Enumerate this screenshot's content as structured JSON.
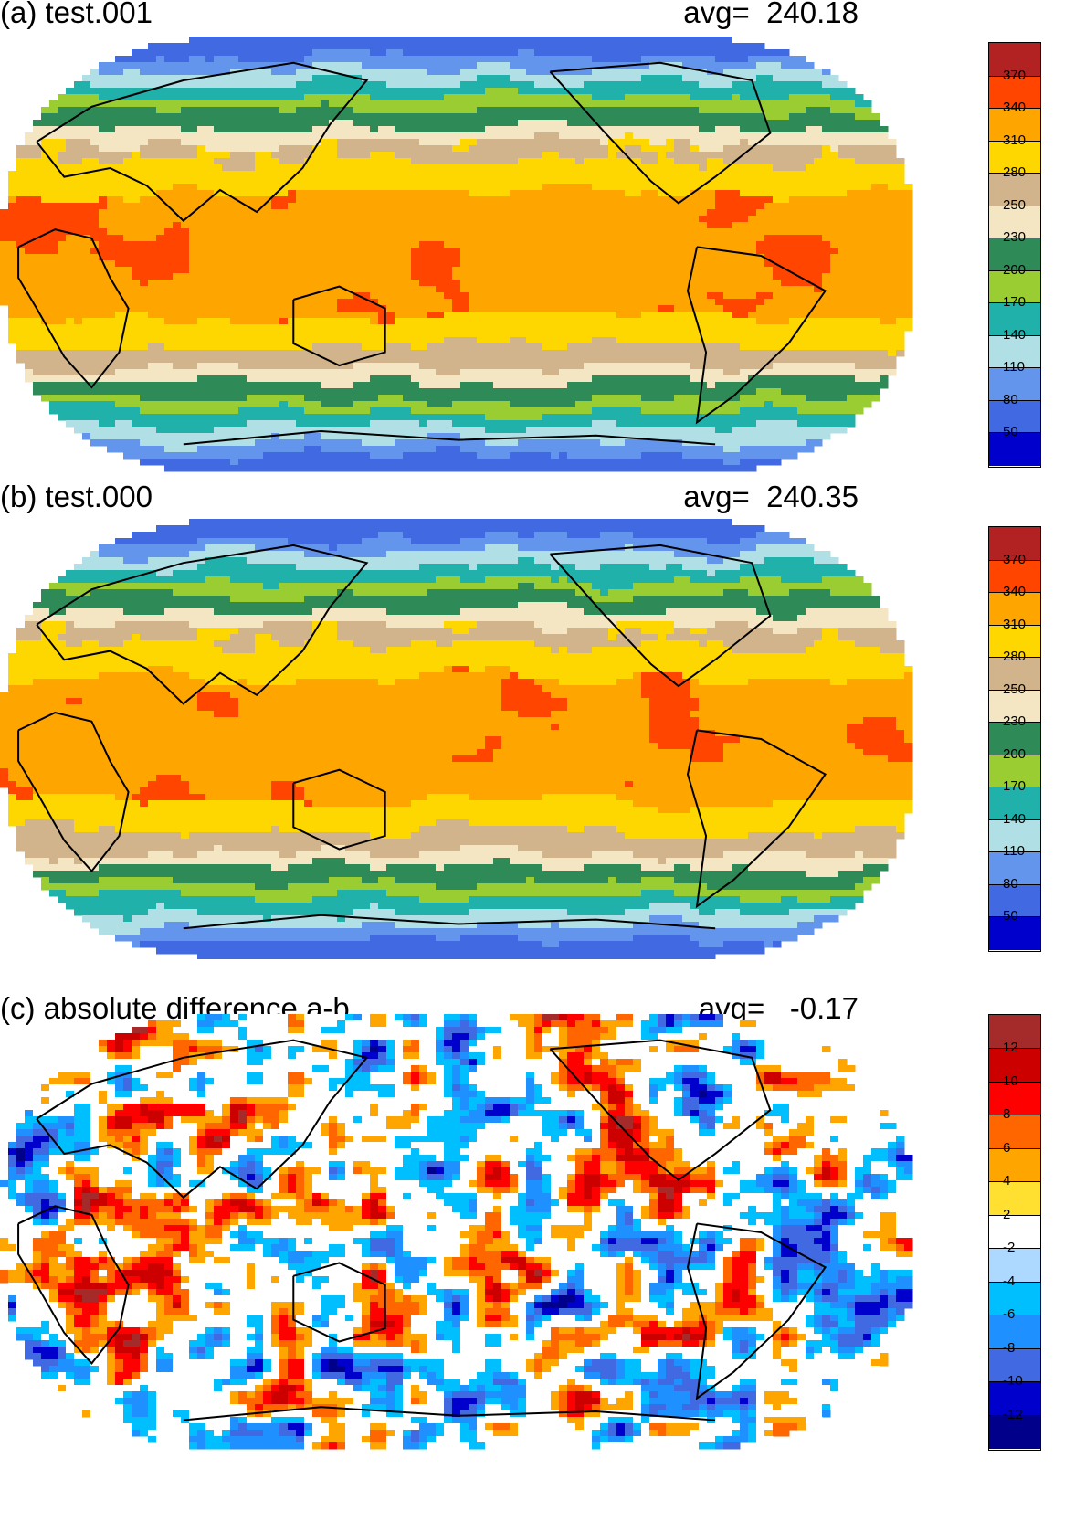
{
  "panels": [
    {
      "id": "a",
      "title": "(a) test.001",
      "avg": "avg=  240.18",
      "colorbar": {
        "labels": [
          "370",
          "340",
          "310",
          "280",
          "250",
          "230",
          "200",
          "170",
          "140",
          "110",
          "80",
          "50"
        ],
        "colors": [
          "#b22222",
          "#ff4500",
          "#ffa500",
          "#ffd700",
          "#d2b48c",
          "#f5e6c3",
          "#2e8b57",
          "#9acd32",
          "#20b2aa",
          "#b0e0e6",
          "#6495ed",
          "#4169e1",
          "#0000cd"
        ]
      },
      "field": {
        "kind": "absolute",
        "bands_description_north_to_south": "blue, light blue, teal, green, tan, yellow/orange tropics, tan, green, teal, light blue, blue"
      }
    },
    {
      "id": "b",
      "title": "(b) test.000",
      "avg": "avg=  240.35",
      "colorbar": {
        "labels": [
          "370",
          "340",
          "310",
          "280",
          "250",
          "230",
          "200",
          "170",
          "140",
          "110",
          "80",
          "50"
        ],
        "colors": [
          "#b22222",
          "#ff4500",
          "#ffa500",
          "#ffd700",
          "#d2b48c",
          "#f5e6c3",
          "#2e8b57",
          "#9acd32",
          "#20b2aa",
          "#b0e0e6",
          "#6495ed",
          "#4169e1",
          "#0000cd"
        ]
      },
      "field": {
        "kind": "absolute"
      }
    },
    {
      "id": "c",
      "title": "(c) absolute difference a-b",
      "avg": "avg=   -0.17",
      "colorbar": {
        "labels": [
          "12",
          "10",
          "8",
          "6",
          "4",
          "2",
          "-2",
          "-4",
          "-6",
          "-8",
          "-10",
          "-12"
        ],
        "colors": [
          "#a52a2a",
          "#cd0000",
          "#ff0000",
          "#ff6600",
          "#ffa500",
          "#ffdf2f",
          "#ffffff",
          "#add8ff",
          "#00bfff",
          "#1e90ff",
          "#4169e1",
          "#0000cd",
          "#00008b"
        ]
      },
      "field": {
        "kind": "difference"
      }
    }
  ]
}
